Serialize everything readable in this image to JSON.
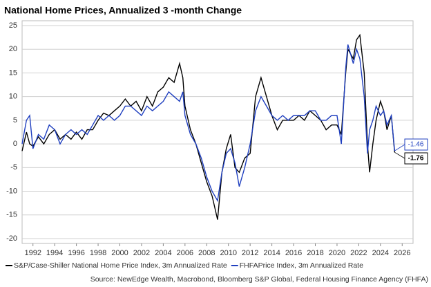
{
  "chart_data": {
    "type": "line",
    "title": "National Home Prices, Annualized 3  -month Change",
    "source": "Source: NewEdge Wealth, Macrobond, Bloomberg S&P Global, Federal Housing Finance Agency (FHFA)",
    "x": [
      1991.0,
      1991.4,
      1991.7,
      1992.0,
      1992.5,
      1993.0,
      1993.5,
      1994.0,
      1994.5,
      1995.0,
      1995.5,
      1996.0,
      1996.5,
      1997.0,
      1997.5,
      1998.0,
      1998.5,
      1999.0,
      1999.5,
      2000.0,
      2000.5,
      2001.0,
      2001.5,
      2002.0,
      2002.5,
      2003.0,
      2003.5,
      2004.0,
      2004.5,
      2005.0,
      2005.5,
      2005.8,
      2006.0,
      2006.5,
      2007.0,
      2007.5,
      2008.0,
      2008.5,
      2009.0,
      2009.4,
      2009.8,
      2010.2,
      2010.6,
      2011.0,
      2011.5,
      2012.0,
      2012.5,
      2013.0,
      2013.5,
      2014.0,
      2014.5,
      2015.0,
      2015.5,
      2016.0,
      2016.5,
      2017.0,
      2017.5,
      2018.0,
      2018.5,
      2019.0,
      2019.5,
      2020.0,
      2020.4,
      2020.8,
      2021.0,
      2021.5,
      2021.8,
      2022.1,
      2022.5,
      2022.8,
      2023.0,
      2023.3,
      2023.6,
      2024.0,
      2024.3,
      2024.6,
      2025.0,
      2025.3
    ],
    "series": [
      {
        "name": "S&P/Case-Shiller National Home Price Index, 3m Annualized Rate",
        "color": "#000000",
        "values": [
          -1.5,
          2.5,
          0,
          -0.5,
          1.5,
          0,
          2,
          3,
          1,
          2,
          1,
          2.5,
          1,
          3,
          3,
          5,
          6.5,
          6,
          7,
          8,
          9.5,
          8,
          9,
          7,
          10,
          8,
          11,
          12,
          14,
          13,
          17,
          14,
          8,
          3,
          0,
          -4,
          -8,
          -11,
          -16,
          -6,
          -1,
          2,
          -5,
          -6,
          -3,
          -2,
          10,
          14,
          10,
          6,
          3,
          5,
          5,
          5,
          6,
          5,
          7,
          6,
          5,
          3,
          4,
          4,
          2,
          15,
          20,
          18,
          22,
          23,
          15,
          0,
          -6,
          0,
          5,
          9,
          7,
          3,
          6,
          -1.76
        ]
      },
      {
        "name": "FHFAPrice Index, 3m Annualized Rate",
        "color": "#1f3fbf",
        "values": [
          0,
          5,
          6,
          -1,
          2,
          1,
          4,
          3,
          0,
          2,
          3,
          2,
          3,
          2,
          4,
          6,
          5,
          6,
          5,
          6,
          8,
          8,
          7,
          6,
          8,
          7,
          8,
          9,
          11,
          10,
          9,
          11,
          6,
          2,
          0,
          -3,
          -7,
          -10,
          -12,
          -6,
          -2,
          -1,
          -4,
          -9,
          -5,
          0,
          7,
          10,
          8,
          6,
          5,
          6,
          5,
          6,
          6,
          6,
          7,
          7,
          5,
          5,
          6,
          6,
          0,
          16,
          21,
          17,
          20,
          18,
          10,
          -2,
          3,
          5,
          8,
          6,
          7,
          4,
          6,
          -1.46
        ]
      }
    ],
    "xlim": [
      1991,
      2027
    ],
    "xticks": [
      1992,
      1994,
      1996,
      1998,
      2000,
      2002,
      2004,
      2006,
      2008,
      2010,
      2012,
      2014,
      2016,
      2018,
      2020,
      2022,
      2024,
      2026
    ],
    "ylim": [
      -20,
      25
    ],
    "yticks": [
      25,
      20,
      15,
      10,
      5,
      0,
      -5,
      -10,
      -15,
      -20
    ],
    "grid": true
  }
}
